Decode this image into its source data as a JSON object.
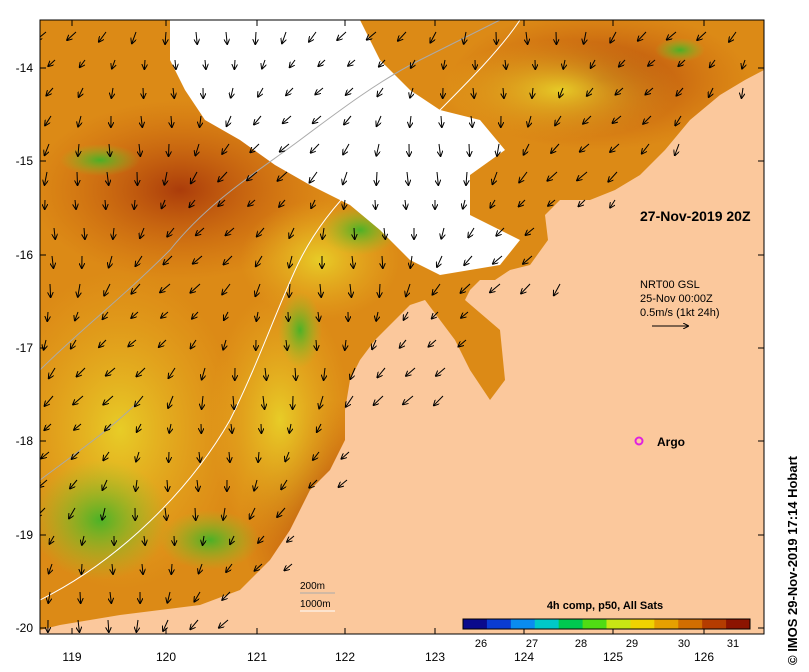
{
  "map": {
    "date_label": "27-Nov-2019 20Z",
    "argo_label": "Argo",
    "credit": "© IMOS 29-Nov-2019 17:14 Hobart",
    "current_legend": {
      "line1": "NRT00 GSL",
      "line2": "25-Nov 00:00Z",
      "line3": "0.5m/s (1kt 24h)"
    },
    "isobaths": {
      "shallow": "200m",
      "deep": "1000m"
    },
    "lon_ticks": [
      "119",
      "120",
      "121",
      "122",
      "123",
      "124",
      "125",
      "126"
    ],
    "lat_ticks": [
      "-14",
      "-15",
      "-16",
      "-17",
      "-18",
      "-19",
      "-20"
    ],
    "colorbar": {
      "title": "4h comp, p50, All Sats",
      "ticks": [
        "26",
        "27",
        "28",
        "29",
        "30",
        "31"
      ],
      "colors": [
        "#0a0a8c",
        "#0a3cd2",
        "#0a8cf0",
        "#00c8c8",
        "#00c850",
        "#50dc14",
        "#c8e614",
        "#f0d200",
        "#e6a000",
        "#d26e00",
        "#b43c00",
        "#8c1400"
      ]
    },
    "colors": {
      "land": "#fbc89c",
      "sst_warm": "#d97a10",
      "sst_hot": "#b0440a",
      "sst_mid": "#e8b020",
      "cloud": "#ffffff"
    }
  }
}
